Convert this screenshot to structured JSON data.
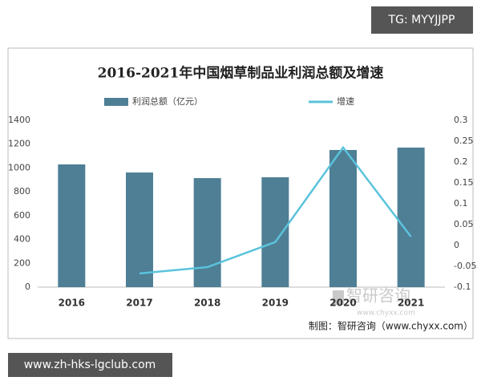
{
  "chart_data": {
    "type": "bar_line",
    "title": "2016-2021年中国烟草制品业利润总额及增速",
    "categories": [
      "2016",
      "2017",
      "2018",
      "2019",
      "2020",
      "2021"
    ],
    "series": [
      {
        "name": "利润总额（亿元）",
        "type": "bar",
        "color": "#4e7f95",
        "values": [
          1030,
          962,
          915,
          922,
          1151,
          1171
        ]
      },
      {
        "name": "增速",
        "type": "line",
        "axis": "y2",
        "color": "#5bc3dc",
        "values": [
          null,
          -0.067,
          -0.052,
          0.008,
          0.235,
          0.021
        ]
      }
    ],
    "ylim": [
      0,
      1400
    ],
    "yticks": [
      0,
      200,
      400,
      600,
      800,
      1000,
      1200,
      1400
    ],
    "y2lim": [
      -0.1,
      0.3
    ],
    "y2ticks": [
      -0.1,
      -0.05,
      0,
      0.05,
      0.1,
      0.15,
      0.2,
      0.25,
      0.3
    ],
    "grid": false,
    "legend": "top",
    "source": "制图：智研咨询（www.chyxx.com）"
  },
  "watermark": {
    "brand": "智研咨询",
    "url": "www.chyxx.com"
  },
  "banners": {
    "top_right": "TG: MYYJJPP",
    "bottom_left": "www.zh-hks-lgclub.com"
  }
}
